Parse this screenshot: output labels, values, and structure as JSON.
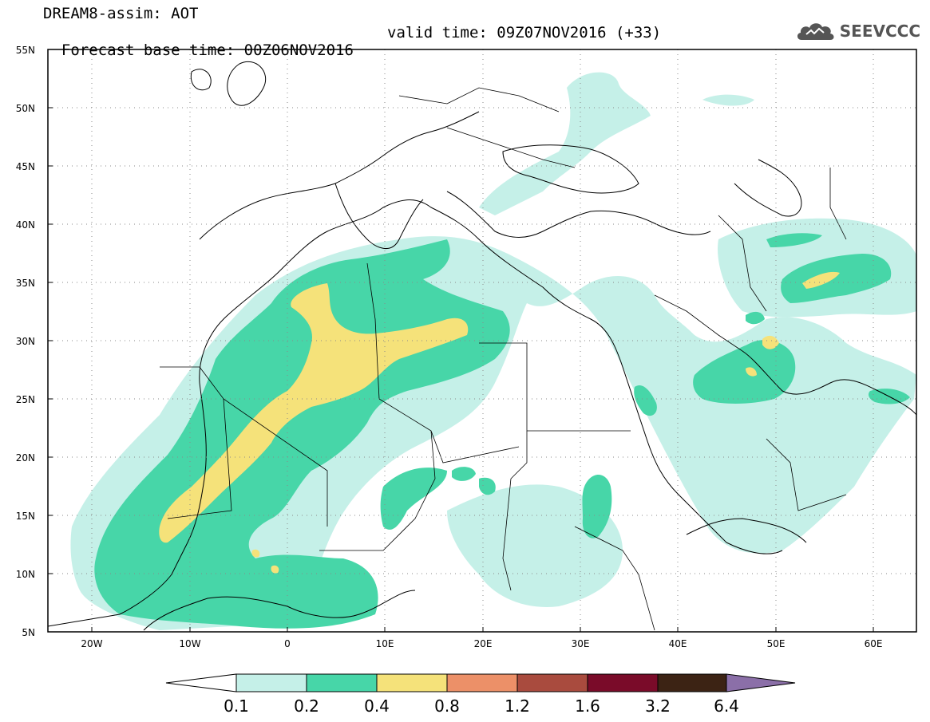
{
  "header": {
    "title_line1": "DREAM8-assim: AOT",
    "base_time": "Forecast base time: 00Z06NOV2016",
    "valid_time": "valid time: 09Z07NOV2016 (+33)",
    "logo_text": "SEEVCCC"
  },
  "map": {
    "lat_labels": [
      "55N",
      "50N",
      "45N",
      "40N",
      "35N",
      "30N",
      "25N",
      "20N",
      "15N",
      "10N",
      "5N"
    ],
    "lon_labels": [
      "20W",
      "10W",
      "0",
      "10E",
      "20E",
      "30E",
      "40E",
      "50E",
      "60E"
    ],
    "extent": {
      "lon": [
        -25,
        65
      ],
      "lat": [
        5,
        55
      ]
    }
  },
  "colorbar": {
    "colors": [
      "#ffffff",
      "#c5f0e8",
      "#47d6a8",
      "#f5e27a",
      "#ec9068",
      "#a94b3e",
      "#7a0b29",
      "#3c2314",
      "#8b6fa8"
    ],
    "labels": [
      "0.1",
      "0.2",
      "0.4",
      "0.8",
      "1.2",
      "1.6",
      "3.2",
      "6.4"
    ]
  }
}
